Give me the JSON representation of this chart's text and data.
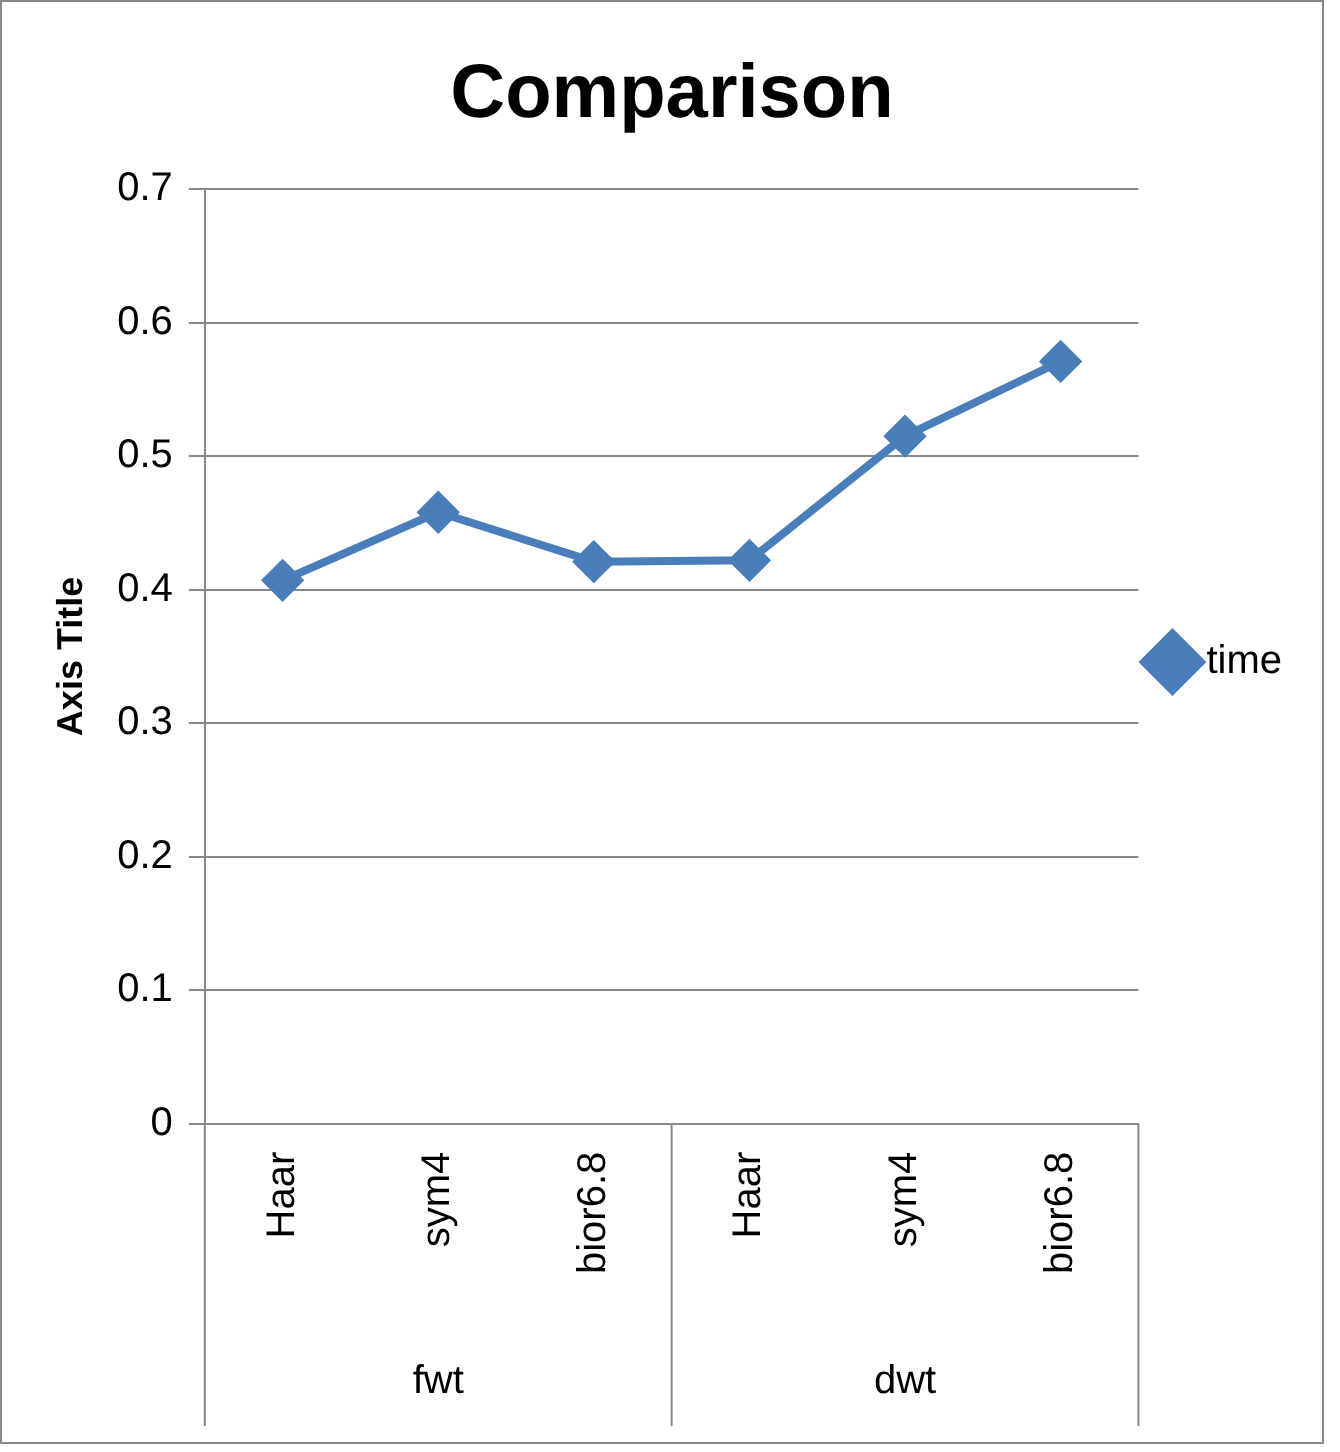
{
  "chart_data": {
    "type": "line",
    "title": "Comparison",
    "ylabel": "Axis Title",
    "categories": [
      "Haar",
      "sym4",
      "bior6.8",
      "Haar",
      "sym4",
      "bior6.8"
    ],
    "annotations": [
      "fwt",
      "dwt"
    ],
    "series": [
      {
        "name": "time",
        "color": "#4a7ebb",
        "values": [
          0.407,
          0.458,
          0.421,
          0.422,
          0.515,
          0.571
        ]
      }
    ],
    "ylim": [
      0,
      0.7
    ],
    "yticks": [
      0,
      0.1,
      0.2,
      0.3,
      0.4,
      0.5,
      0.6,
      0.7
    ],
    "grid": "y",
    "legend": "right",
    "marker": "diamond",
    "line_style": "solid"
  }
}
